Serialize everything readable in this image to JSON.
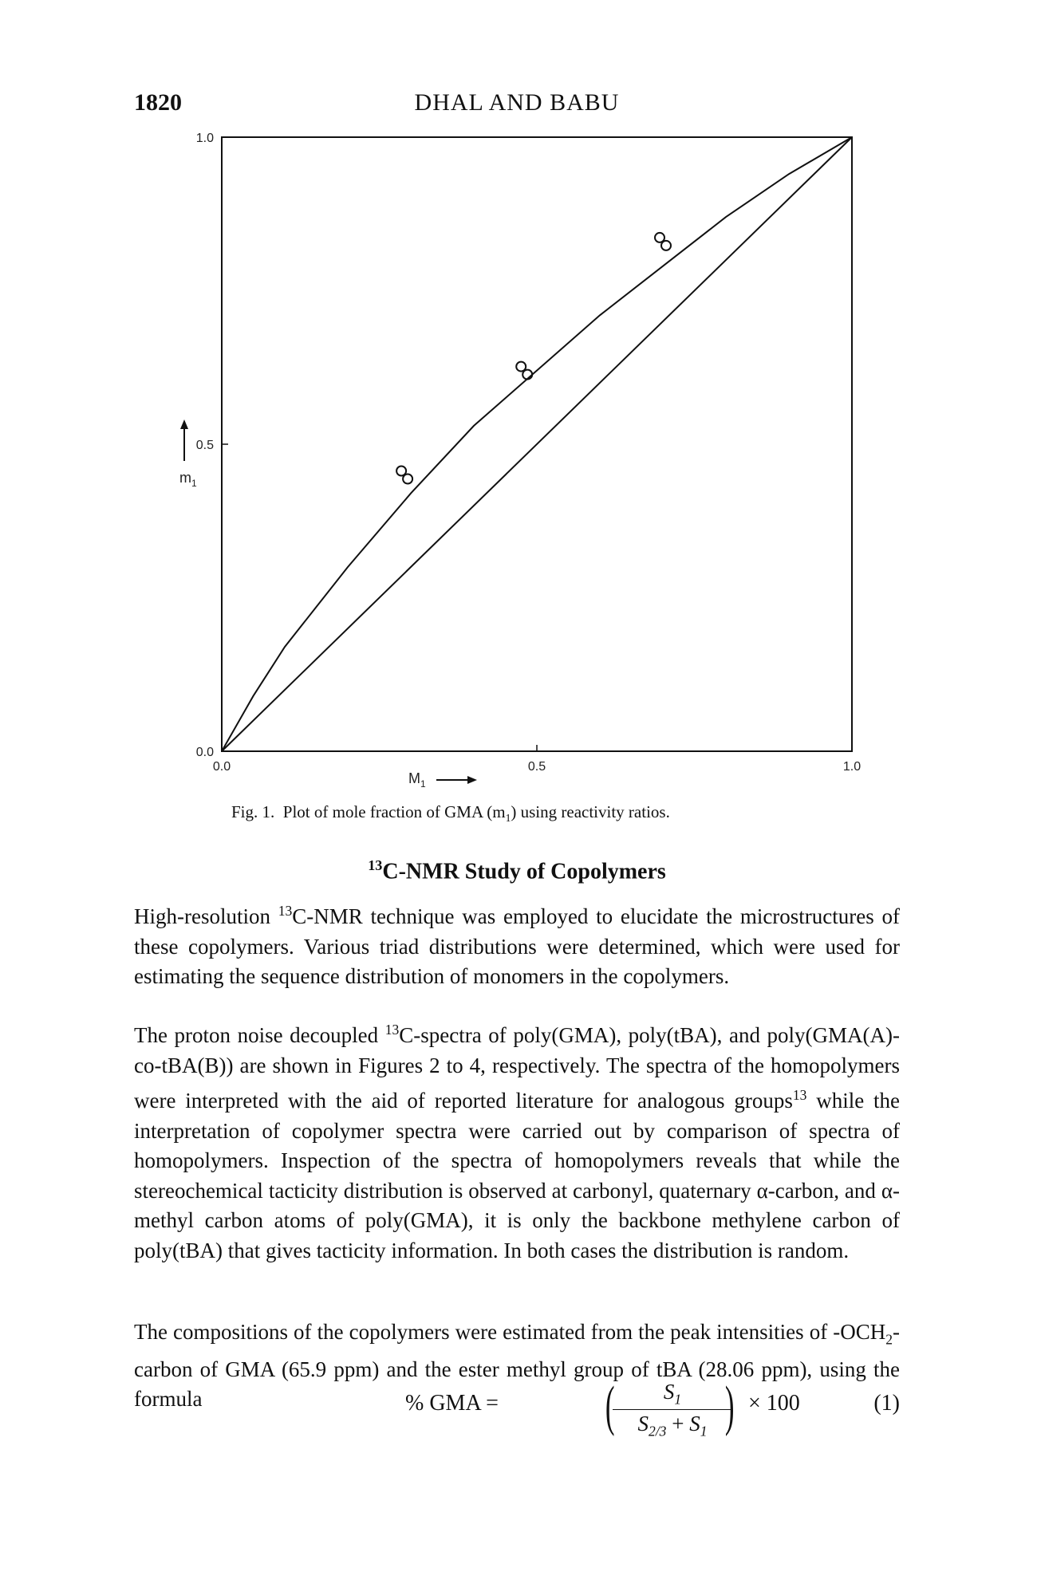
{
  "header": {
    "page_number": "1820",
    "running_head": "DHAL AND BABU"
  },
  "chart_data": {
    "type": "line",
    "ylabel": "m",
    "ylabel_sub": "1",
    "xlabel": "M",
    "xlabel_sub": "1",
    "xlim": [
      0,
      1
    ],
    "ylim": [
      0,
      1
    ],
    "x_ticks": [
      "0.0",
      "0.5",
      "1.0"
    ],
    "y_ticks": [
      "0.0",
      "0.5",
      "1.0"
    ],
    "grid": false,
    "series": [
      {
        "kind": "curve",
        "x": [
          0,
          0.05,
          0.1,
          0.2,
          0.3,
          0.4,
          0.5,
          0.6,
          0.7,
          0.8,
          0.9,
          1.0
        ],
        "y": [
          0,
          0.09,
          0.17,
          0.3,
          0.42,
          0.53,
          0.62,
          0.71,
          0.79,
          0.87,
          0.94,
          1.0
        ]
      },
      {
        "kind": "diagonal",
        "x": [
          0,
          1
        ],
        "y": [
          0,
          1
        ]
      }
    ],
    "points": [
      {
        "x": 0.29,
        "y": 0.45
      },
      {
        "x": 0.48,
        "y": 0.62
      },
      {
        "x": 0.7,
        "y": 0.83
      }
    ]
  },
  "caption": {
    "label": "Fig. 1.",
    "text": "Plot of mole fraction of GMA (m",
    "sub": "1",
    "tail": ") using reactivity ratios."
  },
  "section": {
    "sup": "13",
    "title": "C-NMR Study of Copolymers"
  },
  "paragraphs": {
    "p1": {
      "a": "High-resolution ",
      "sup": "13",
      "b": "C-NMR technique was employed to elucidate the microstructures of these copolymers. Various triad distributions were determined, which were used for estimating the sequence distribution of monomers in the copolymers."
    },
    "p2": {
      "a": "The proton noise decoupled ",
      "sup1": "13",
      "b": "C-spectra of poly(GMA), poly(tBA), and poly(GMA(A)-co-tBA(B)) are shown in Figures 2 to 4, respectively. The spectra of the homopolymers were interpreted with the aid of reported literature for analogous groups",
      "sup2": "13",
      "c": " while the interpretation of copolymer spectra were carried out by comparison of spectra of homopolymers. Inspection of the spectra of homopolymers reveals that while the stereochemical tacticity distribution is observed at carbonyl, quaternary α-carbon, and α-methyl carbon atoms of poly(GMA), it is only the backbone methylene carbon of poly(tBA) that gives tacticity information. In both cases the distribution is random."
    },
    "p3": {
      "a": "The compositions of the copolymers were estimated from the peak intensities of -OCH",
      "sub": "2",
      "b": "- carbon of GMA (65.9 ppm) and the ester methyl group of tBA (28.06 ppm), using the formula"
    }
  },
  "equation": {
    "lhs": "% GMA =",
    "numerator": "S",
    "numerator_sub": "1",
    "den_a": "S",
    "den_a_sub": "2/3",
    "den_plus": " + ",
    "den_b": "S",
    "den_b_sub": "1",
    "rhs": "× 100",
    "number": "(1)"
  }
}
